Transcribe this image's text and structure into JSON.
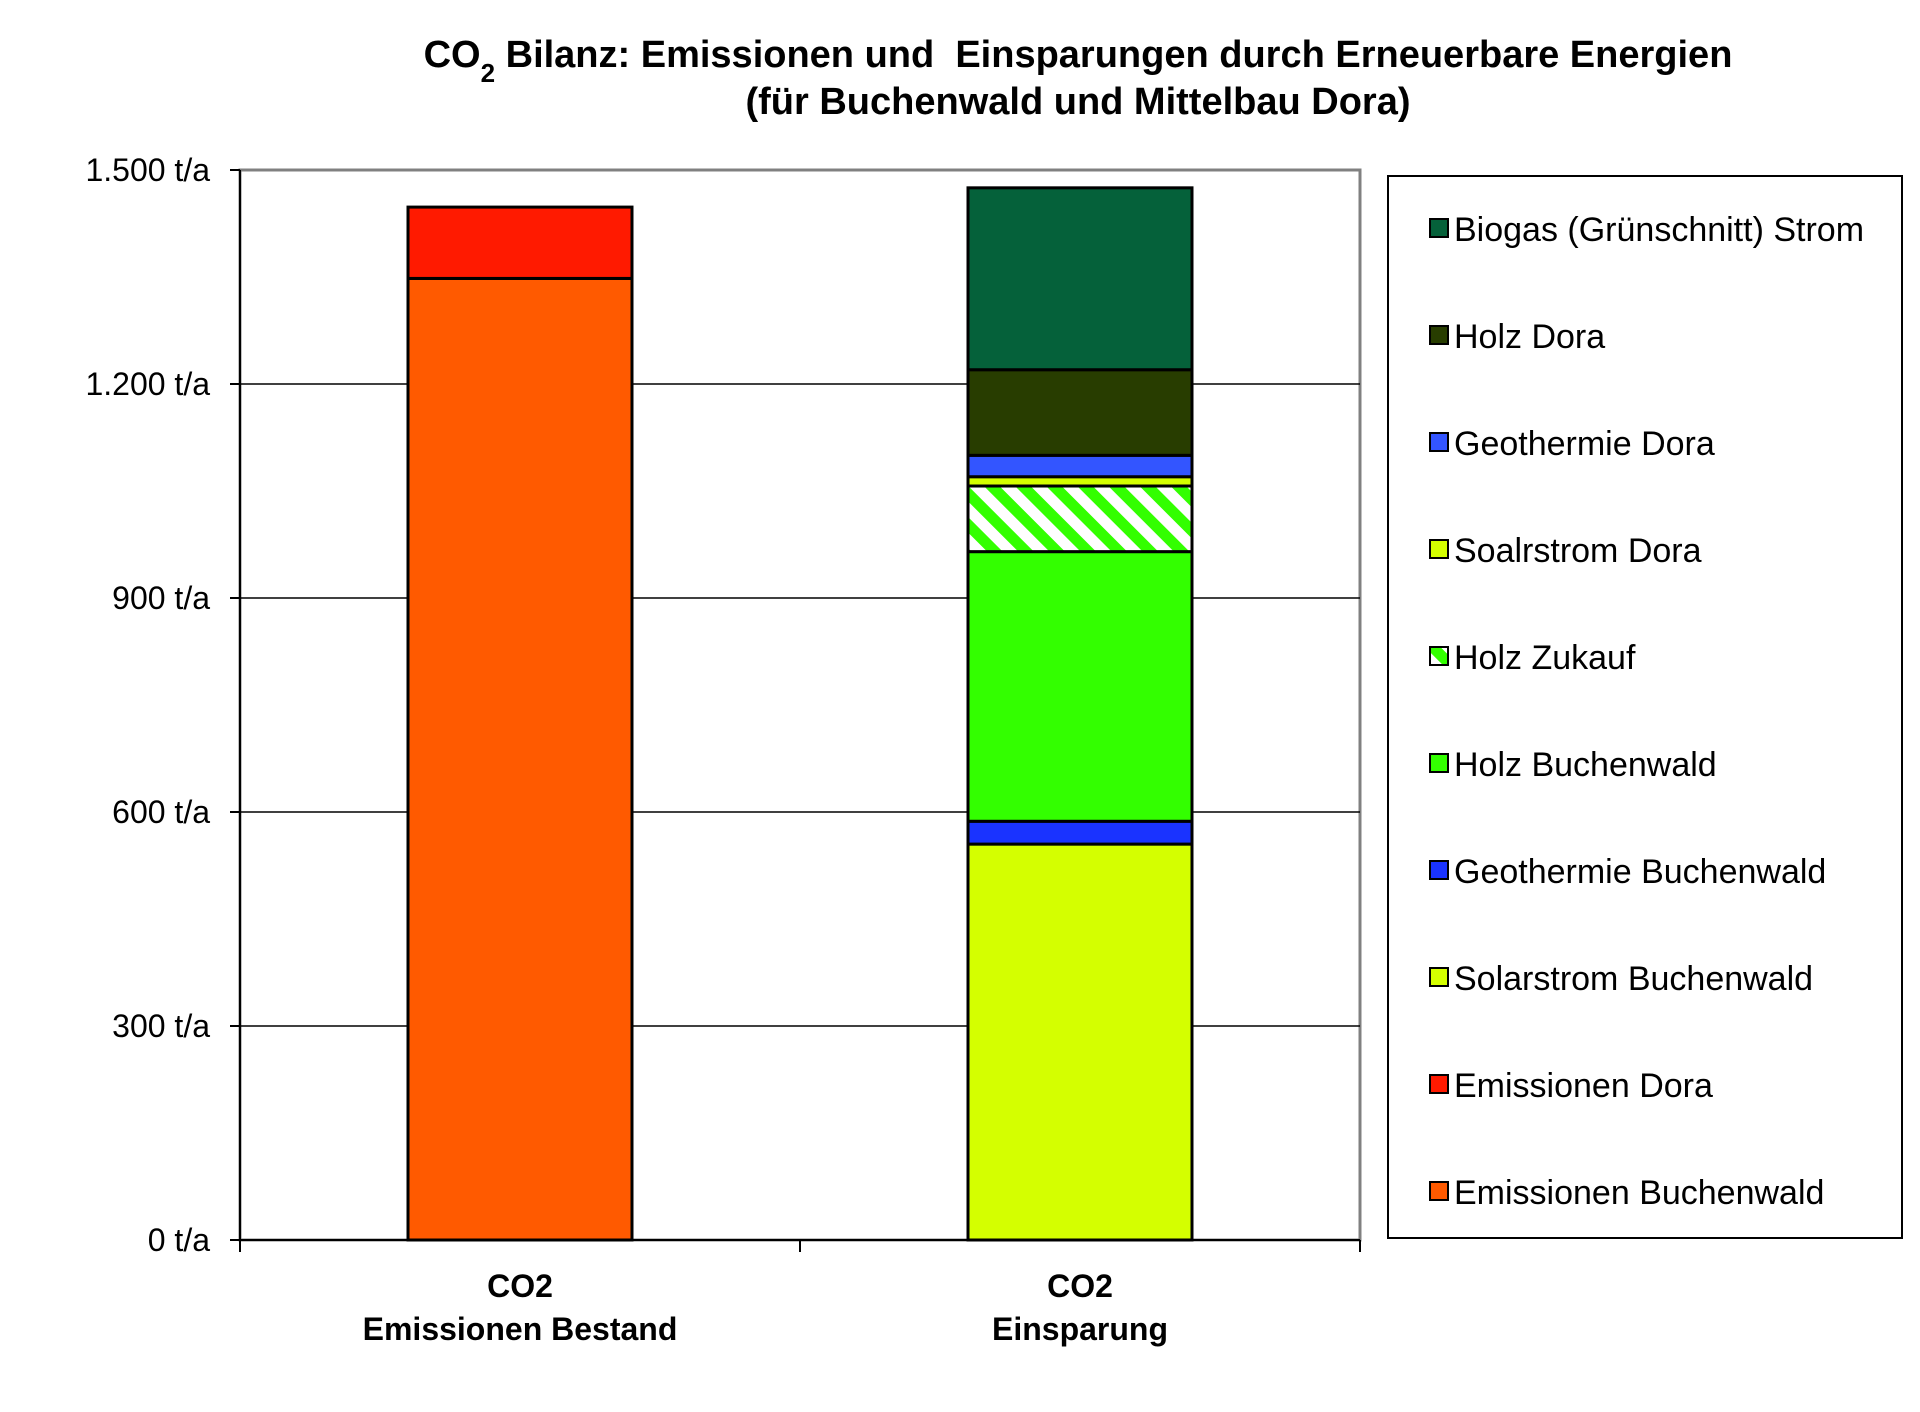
{
  "chart_data": {
    "type": "bar",
    "stacked": true,
    "title": {
      "line1_prefix": "CO",
      "line1_subscript": "2",
      "line1_rest": " Bilanz: Emissionen und  Einsparungen durch Erneuerbare Energien",
      "line2": "(für Buchenwald und Mittelbau Dora)"
    },
    "categories": [
      [
        "CO2",
        "Emissionen Bestand"
      ],
      [
        "CO2",
        "Einsparung"
      ]
    ],
    "ylim": [
      0,
      1500
    ],
    "yticks": [
      0,
      300,
      600,
      900,
      1200,
      1500
    ],
    "ytick_labels": [
      "0 t/a",
      "300 t/a",
      "600 t/a",
      "900 t/a",
      "1.200 t/a",
      "1.500 t/a"
    ],
    "grid": true,
    "legend_position": "right",
    "series": [
      {
        "name": "Emissionen Buchenwald",
        "color": "#ff5a00",
        "pattern": "solid",
        "values": [
          1348,
          0
        ]
      },
      {
        "name": "Emissionen Dora",
        "color": "#ff1a00",
        "pattern": "solid",
        "values": [
          100,
          0
        ]
      },
      {
        "name": "Solarstrom  Buchenwald",
        "color": "#d4ff00",
        "pattern": "solid",
        "values": [
          0,
          555
        ]
      },
      {
        "name": "Geothermie Buchenwald",
        "color": "#1a33ff",
        "pattern": "solid",
        "values": [
          0,
          32
        ]
      },
      {
        "name": "Holz Buchenwald",
        "color": "#33ff00",
        "pattern": "solid",
        "values": [
          0,
          378
        ]
      },
      {
        "name": "Holz Zukauf",
        "color": "#33ff00",
        "pattern": "hatch",
        "values": [
          0,
          92
        ]
      },
      {
        "name": "Soalrstrom Dora",
        "color": "#d4ff00",
        "pattern": "solid",
        "values": [
          0,
          13
        ]
      },
      {
        "name": "Geothermie Dora",
        "color": "#3355ff",
        "pattern": "solid",
        "values": [
          0,
          30
        ]
      },
      {
        "name": "Holz Dora",
        "color": "#283d00",
        "pattern": "solid",
        "values": [
          0,
          120
        ]
      },
      {
        "name": "Biogas (Grünschnitt) Strom",
        "color": "#05613a",
        "pattern": "solid",
        "values": [
          0,
          255
        ]
      }
    ]
  }
}
